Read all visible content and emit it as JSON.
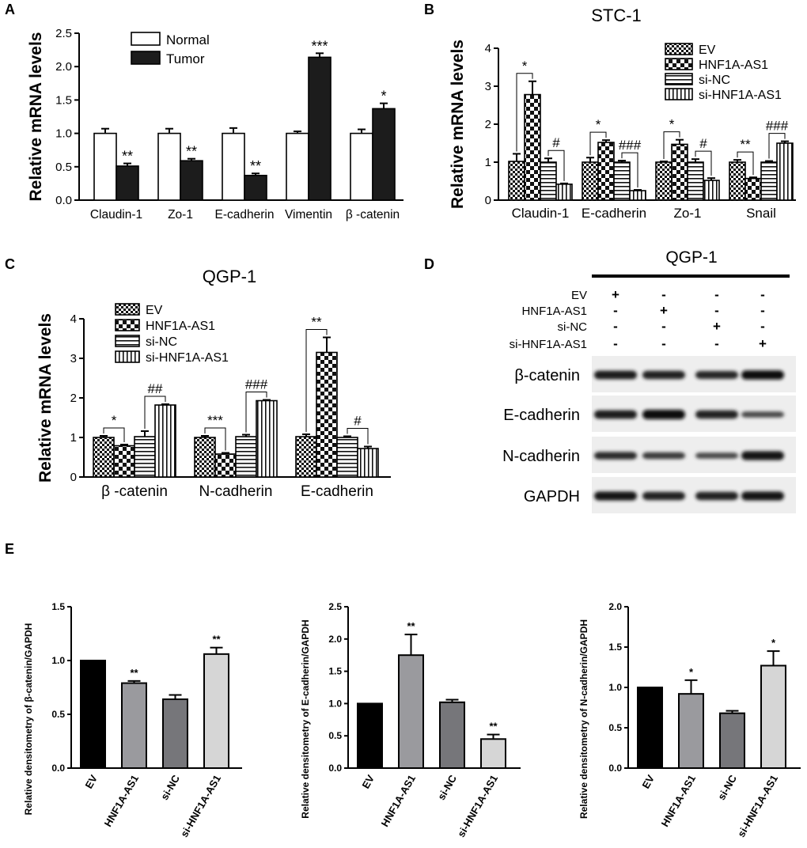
{
  "panel_letters": [
    "A",
    "B",
    "C",
    "D",
    "E"
  ],
  "chart_data": [
    {
      "id": "A",
      "type": "bar",
      "title": "",
      "xlabel": "",
      "ylabel": "Relative mRNA levels",
      "ylim": [
        0,
        2.5
      ],
      "yticks": [
        "0.0",
        "0.5",
        "1.0",
        "1.5",
        "2.0",
        "2.5"
      ],
      "categories": [
        "Claudin-1",
        "Zo-1",
        "E-cadherin",
        "Vimentin",
        "β -catenin"
      ],
      "series": [
        {
          "name": "Normal",
          "pattern": "white",
          "values": [
            1.0,
            1.0,
            1.0,
            1.0,
            1.0
          ],
          "errors": [
            0.07,
            0.07,
            0.08,
            0.03,
            0.06
          ],
          "labels": [
            "",
            "",
            "",
            "",
            ""
          ]
        },
        {
          "name": "Tumor",
          "pattern": "black",
          "values": [
            0.51,
            0.59,
            0.37,
            2.14,
            1.37
          ],
          "errors": [
            0.04,
            0.03,
            0.03,
            0.06,
            0.08
          ],
          "labels": [
            "**",
            "**",
            "**",
            "***",
            "*"
          ]
        }
      ]
    },
    {
      "id": "B",
      "type": "bar",
      "title": "STC-1",
      "xlabel": "",
      "ylabel": "Relative mRNA levels",
      "ylim": [
        0,
        4
      ],
      "yticks": [
        "0",
        "1",
        "2",
        "3",
        "4"
      ],
      "categories": [
        "Claudin-1",
        "E-cadherin",
        "Zo-1",
        "Snail"
      ],
      "series": [
        {
          "name": "EV",
          "pattern": "check",
          "values": [
            1.02,
            1.0,
            1.0,
            1.0
          ],
          "errors": [
            0.2,
            0.12,
            0.02,
            0.06
          ]
        },
        {
          "name": "HNF1A-AS1",
          "pattern": "bigcheck",
          "values": [
            2.78,
            1.52,
            1.47,
            0.57
          ],
          "errors": [
            0.35,
            0.06,
            0.12,
            0.03
          ]
        },
        {
          "name": "si-NC",
          "pattern": "hstripe",
          "values": [
            1.0,
            1.0,
            1.0,
            1.0
          ],
          "errors": [
            0.1,
            0.04,
            0.08,
            0.03
          ]
        },
        {
          "name": "si-HNF1A-AS1",
          "pattern": "vstripe",
          "values": [
            0.42,
            0.25,
            0.52,
            1.5
          ],
          "errors": [
            0.02,
            0.02,
            0.06,
            0.05
          ]
        }
      ],
      "significance": [
        {
          "category": 0,
          "pair": [
            0,
            1
          ],
          "label": "*"
        },
        {
          "category": 0,
          "pair": [
            2,
            3
          ],
          "label": "#"
        },
        {
          "category": 1,
          "pair": [
            0,
            1
          ],
          "label": "*"
        },
        {
          "category": 1,
          "pair": [
            2,
            3
          ],
          "label": "###"
        },
        {
          "category": 2,
          "pair": [
            0,
            1
          ],
          "label": "*"
        },
        {
          "category": 2,
          "pair": [
            2,
            3
          ],
          "label": "#"
        },
        {
          "category": 3,
          "pair": [
            0,
            1
          ],
          "label": "**"
        },
        {
          "category": 3,
          "pair": [
            2,
            3
          ],
          "label": "###"
        }
      ]
    },
    {
      "id": "C",
      "type": "bar",
      "title": "QGP-1",
      "xlabel": "",
      "ylabel": "Relative mRNA levels",
      "ylim": [
        0,
        4
      ],
      "yticks": [
        "0",
        "1",
        "2",
        "3",
        "4"
      ],
      "categories": [
        "β -catenin",
        "N-cadherin",
        "E-cadherin"
      ],
      "series": [
        {
          "name": "EV",
          "pattern": "check",
          "values": [
            1.0,
            1.0,
            1.02
          ],
          "errors": [
            0.04,
            0.04,
            0.06
          ]
        },
        {
          "name": "HNF1A-AS1",
          "pattern": "bigcheck",
          "values": [
            0.79,
            0.58,
            3.15
          ],
          "errors": [
            0.03,
            0.03,
            0.38
          ]
        },
        {
          "name": "si-NC",
          "pattern": "hstripe",
          "values": [
            1.02,
            1.02,
            1.0
          ],
          "errors": [
            0.14,
            0.05,
            0.03
          ]
        },
        {
          "name": "si-HNF1A-AS1",
          "pattern": "vstripe",
          "values": [
            1.82,
            1.93,
            0.72
          ],
          "errors": [
            0.02,
            0.02,
            0.05
          ]
        }
      ],
      "significance": [
        {
          "category": 0,
          "pair": [
            0,
            1
          ],
          "label": "*"
        },
        {
          "category": 0,
          "pair": [
            2,
            3
          ],
          "label": "##"
        },
        {
          "category": 1,
          "pair": [
            0,
            1
          ],
          "label": "***"
        },
        {
          "category": 1,
          "pair": [
            2,
            3
          ],
          "label": "###"
        },
        {
          "category": 2,
          "pair": [
            0,
            1
          ],
          "label": "**"
        },
        {
          "category": 2,
          "pair": [
            2,
            3
          ],
          "label": "#"
        }
      ]
    },
    {
      "id": "E1",
      "type": "bar",
      "title": "",
      "xlabel": "",
      "ylabel": "Relative densitometry of β-catenin/GAPDH",
      "ylim": [
        0,
        1.5
      ],
      "yticks": [
        "0.0",
        "0.5",
        "1.0",
        "1.5"
      ],
      "categories": [
        "EV",
        "HNF1A-AS1",
        "si-NC",
        "si-HNF1A-AS1"
      ],
      "values": [
        1.0,
        0.79,
        0.64,
        1.06
      ],
      "errors": [
        0,
        0.02,
        0.04,
        0.06
      ],
      "labels": [
        "",
        "**",
        "",
        "**"
      ],
      "colors": [
        "#000000",
        "#9a9a9e",
        "#76767a",
        "#d6d6d6"
      ]
    },
    {
      "id": "E2",
      "type": "bar",
      "title": "",
      "xlabel": "",
      "ylabel": "Relative densitometry of E-cadherin/GAPDH",
      "ylim": [
        0,
        2.5
      ],
      "yticks": [
        "0.0",
        "0.5",
        "1.0",
        "1.5",
        "2.0",
        "2.5"
      ],
      "categories": [
        "EV",
        "HNF1A-AS1",
        "si-NC",
        "si-HNF1A-AS1"
      ],
      "values": [
        1.0,
        1.75,
        1.02,
        0.45
      ],
      "errors": [
        0,
        0.32,
        0.04,
        0.07
      ],
      "labels": [
        "",
        "**",
        "",
        "**"
      ],
      "colors": [
        "#000000",
        "#9a9a9e",
        "#76767a",
        "#d6d6d6"
      ]
    },
    {
      "id": "E3",
      "type": "bar",
      "title": "",
      "xlabel": "",
      "ylabel": "Relative densitometry of N-cadherin/GAPDH",
      "ylim": [
        0,
        2.0
      ],
      "yticks": [
        "0.0",
        "0.5",
        "1.0",
        "1.5",
        "2.0"
      ],
      "categories": [
        "EV",
        "HNF1A-AS1",
        "si-NC",
        "si-HNF1A-AS1"
      ],
      "values": [
        1.0,
        0.92,
        0.68,
        1.27
      ],
      "errors": [
        0,
        0.17,
        0.03,
        0.18
      ],
      "labels": [
        "",
        "*",
        "",
        "*"
      ],
      "colors": [
        "#000000",
        "#9a9a9e",
        "#76767a",
        "#d6d6d6"
      ]
    }
  ],
  "blot": {
    "title": "QGP-1",
    "conditions": [
      "EV",
      "HNF1A-AS1",
      "si-NC",
      "si-HNF1A-AS1"
    ],
    "matrix": [
      [
        "+",
        "-",
        "-",
        "-"
      ],
      [
        "-",
        "+",
        "-",
        "-"
      ],
      [
        "-",
        "-",
        "+",
        "-"
      ],
      [
        "-",
        "-",
        "-",
        "+"
      ]
    ],
    "bands": [
      {
        "name": "β-catenin",
        "intensity": [
          0.85,
          0.8,
          0.75,
          0.95
        ]
      },
      {
        "name": "E-cadherin",
        "intensity": [
          0.85,
          1.0,
          0.8,
          0.45
        ]
      },
      {
        "name": "N-cadherin",
        "intensity": [
          0.7,
          0.55,
          0.45,
          0.9
        ]
      },
      {
        "name": "GAPDH",
        "intensity": [
          0.9,
          0.8,
          0.8,
          0.9
        ]
      }
    ]
  }
}
